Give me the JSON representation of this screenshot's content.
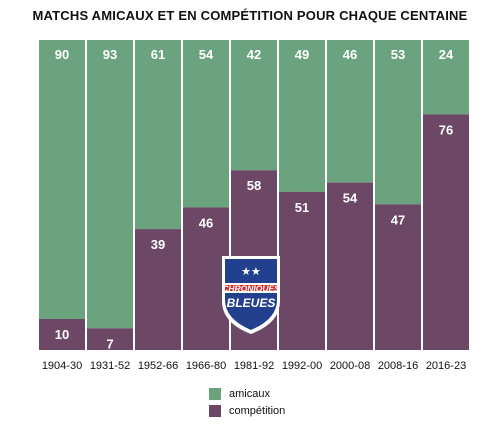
{
  "chart_data": {
    "type": "bar",
    "stacked": true,
    "title": "MATCHS AMICAUX ET EN COMPÉTITION POUR CHAQUE CENTAINE",
    "categories": [
      "1904-30",
      "1931-52",
      "1952-66",
      "1966-80",
      "1981-92",
      "1992-00",
      "2000-08",
      "2008-16",
      "2016-23"
    ],
    "series": [
      {
        "name": "compétition",
        "color": "#6d4866",
        "values": [
          10,
          7,
          39,
          46,
          58,
          51,
          54,
          47,
          76
        ]
      },
      {
        "name": "amicaux",
        "color": "#6ca37f",
        "values": [
          90,
          93,
          61,
          54,
          42,
          49,
          46,
          53,
          24
        ]
      }
    ],
    "ylim": [
      0,
      100
    ],
    "xlabel": "",
    "ylabel": "",
    "grid": false,
    "legend": "bottom-center"
  },
  "legend": {
    "items": [
      {
        "label": "amicaux",
        "color": "#6ca37f"
      },
      {
        "label": "compétition",
        "color": "#6d4866"
      }
    ]
  },
  "logo": {
    "line1": "CHRONIQUES",
    "line2": "BLEUES",
    "stars": "★★"
  }
}
